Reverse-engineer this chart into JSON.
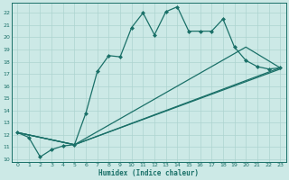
{
  "xlabel": "Humidex (Indice chaleur)",
  "bg_color": "#cce9e6",
  "line_color": "#1a7068",
  "grid_color": "#add4d0",
  "xlim": [
    -0.5,
    23.5
  ],
  "ylim": [
    9.8,
    22.8
  ],
  "yticks": [
    10,
    11,
    12,
    13,
    14,
    15,
    16,
    17,
    18,
    19,
    20,
    21,
    22
  ],
  "xticks": [
    0,
    1,
    2,
    3,
    4,
    5,
    6,
    7,
    8,
    9,
    10,
    11,
    12,
    13,
    14,
    15,
    16,
    17,
    18,
    19,
    20,
    21,
    22,
    23
  ],
  "series": [
    {
      "x": [
        0,
        1,
        2,
        3,
        4,
        5,
        6,
        7,
        8,
        9,
        10,
        11,
        12,
        13,
        14,
        15,
        16,
        17,
        18,
        19,
        20,
        21,
        22,
        23
      ],
      "y": [
        12.2,
        11.8,
        10.2,
        10.8,
        11.1,
        11.2,
        13.8,
        17.2,
        18.5,
        18.4,
        20.8,
        22.0,
        20.2,
        22.1,
        22.5,
        20.5,
        20.5,
        20.5,
        21.5,
        19.2,
        18.1,
        17.6,
        17.4,
        17.5
      ],
      "marker": true
    },
    {
      "x": [
        0,
        5,
        20,
        23
      ],
      "y": [
        12.2,
        11.2,
        19.2,
        17.5
      ],
      "marker": false
    },
    {
      "x": [
        0,
        5,
        23
      ],
      "y": [
        12.2,
        11.2,
        17.5
      ],
      "marker": false
    },
    {
      "x": [
        0,
        5,
        23
      ],
      "y": [
        12.2,
        11.2,
        17.4
      ],
      "marker": false
    }
  ]
}
